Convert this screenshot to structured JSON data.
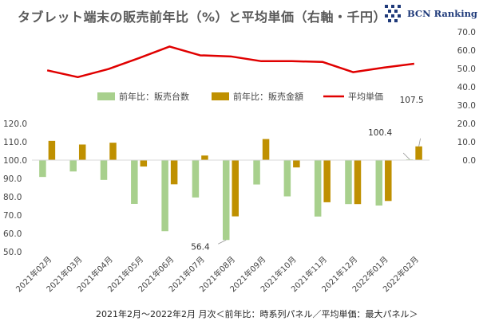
{
  "title": "タブレット端末の販売前年比（%）と平均単価（右軸・千円）",
  "logo_text": "BCN Ranking",
  "footnote": "2021年2月～2022年2月 月次＜前年比：時系列パネル／平均単価：最大パネル＞",
  "colors": {
    "units": "#a8d08d",
    "amount": "#bf9000",
    "price": "#e00000",
    "logo": "#1f3a7a",
    "axis": "#d9d9d9"
  },
  "chart_data": {
    "type": "bar+line",
    "categories": [
      "2021年02月",
      "2021年03月",
      "2021年04月",
      "2021年05月",
      "2021年06月",
      "2021年07月",
      "2021年08月",
      "2021年09月",
      "2021年10月",
      "2021年11月",
      "2021年12月",
      "2022年01月",
      "2022年02月"
    ],
    "series": [
      {
        "name": "前年比：販売台数",
        "type": "bar",
        "axis": "left",
        "values": [
          90.8,
          93.8,
          89.2,
          76.1,
          61.2,
          79.6,
          56.4,
          86.7,
          80.2,
          69.2,
          76.0,
          75.2,
          100.4
        ]
      },
      {
        "name": "前年比：販売金額",
        "type": "bar",
        "axis": "left",
        "values": [
          110.5,
          108.5,
          109.5,
          96.5,
          86.8,
          102.5,
          69.3,
          111.5,
          96.0,
          77.0,
          76.0,
          77.7,
          107.5
        ]
      },
      {
        "name": "平均単価",
        "type": "line",
        "axis": "right",
        "values": [
          49.0,
          45.3,
          49.7,
          55.7,
          62.0,
          57.2,
          56.6,
          54.0,
          54.0,
          53.6,
          48.0,
          50.5,
          52.6
        ]
      }
    ],
    "left_axis": {
      "min": 50,
      "max": 120,
      "step": 10,
      "baseline": 100,
      "ticks": [
        "50.0",
        "60.0",
        "70.0",
        "80.0",
        "90.0",
        "100.0",
        "110.0",
        "120.0"
      ]
    },
    "right_axis": {
      "min": 0,
      "max": 70,
      "step": 10,
      "ticks": [
        "0.0",
        "10.0",
        "20.0",
        "30.0",
        "40.0",
        "50.0",
        "60.0",
        "70.0"
      ]
    },
    "data_labels": [
      {
        "series": 0,
        "index": 6,
        "text": "56.4"
      },
      {
        "series": 0,
        "index": 12,
        "text": "100.4"
      },
      {
        "series": 1,
        "index": 12,
        "text": "107.5"
      }
    ],
    "legend_position": "middle",
    "grid": false
  }
}
